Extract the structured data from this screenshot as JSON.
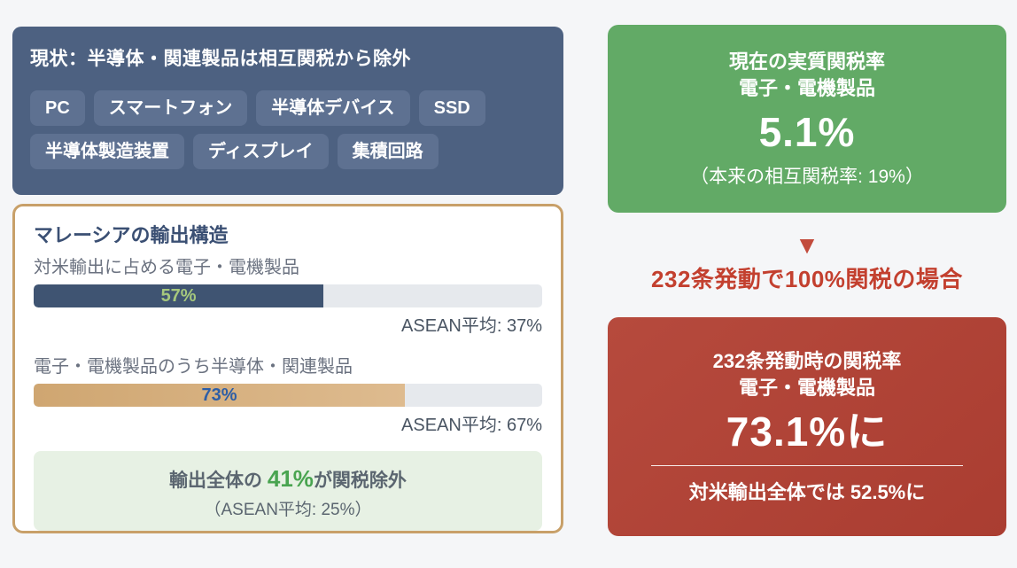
{
  "colors": {
    "page_bg": "#f5f6f8",
    "status_box_bg": "#4d6181",
    "chip_bg": "#5e7191",
    "export_box_border": "#c8a069",
    "export_title": "#3a4f73",
    "bar_track": "#e6e9ed",
    "summary_bg": "#e7f1e4",
    "summary_highlight": "#49a450",
    "green_card_bg": "#62aa66",
    "red_card_bg": "#b04236",
    "transition_red": "#c3402f"
  },
  "current_status_box": {
    "title": "現状：半導体・関連製品は相互関税から除外",
    "chips": [
      "PC",
      "スマートフォン",
      "半導体デバイス",
      "SSD",
      "半導体製造装置",
      "ディスプレイ",
      "集積回路"
    ]
  },
  "export_structure_box": {
    "title": "マレーシアの輸出構造",
    "bars": [
      {
        "label": "対米輸出に占める電子・電機製品",
        "value": 57,
        "value_label": "57%",
        "fill_color": "#3f5472",
        "value_color": "#a6c87d",
        "benchmark": "ASEAN平均: 37%"
      },
      {
        "label": "電子・電機製品のうち半導体・関連製品",
        "value": 73,
        "value_label": "73%",
        "fill_color": "#cfa671",
        "fill_color_end": "#debb8f",
        "value_color": "#2d5ea6",
        "benchmark": "ASEAN平均: 67%"
      }
    ],
    "summary": {
      "prefix": "輸出全体の ",
      "highlight": "41%",
      "suffix": "が関税除外",
      "note": "（ASEAN平均: 25%）"
    }
  },
  "current_tariff_card": {
    "line1": "現在の実質関税率",
    "line2": "電子・電機製品",
    "big_value": "5.1%",
    "note": "（本来の相互関税率: 19%）"
  },
  "transition": {
    "arrow_glyph": "▼",
    "heading": "232条発動で100%関税の場合"
  },
  "scenario_tariff_card": {
    "line1": "232条発動時の関税率",
    "line2": "電子・電機製品",
    "big_value": "73.1%に",
    "footer_prefix": "対米輸出全体では ",
    "footer_value": "52.5%",
    "footer_suffix": "に"
  },
  "chart_data": {
    "type": "bar",
    "orientation": "horizontal",
    "title": "マレーシアの輸出構造",
    "categories": [
      "対米輸出に占める電子・電機製品",
      "電子・電機製品のうち半導体・関連製品"
    ],
    "series": [
      {
        "name": "マレーシア",
        "values": [
          57,
          73
        ]
      },
      {
        "name": "ASEAN平均",
        "values": [
          37,
          67
        ]
      }
    ],
    "xlim": [
      0,
      100
    ],
    "grid": false,
    "legend_position": "none",
    "annotations": [
      "輸出全体の 41%が関税除外（ASEAN平均: 25%）",
      "現在の実質関税率 電子・電機製品 5.1%（本来の相互関税率: 19%）",
      "232条発動で100%関税の場合",
      "232条発動時の関税率 電子・電機製品 73.1%に",
      "対米輸出全体では 52.5%に"
    ]
  }
}
